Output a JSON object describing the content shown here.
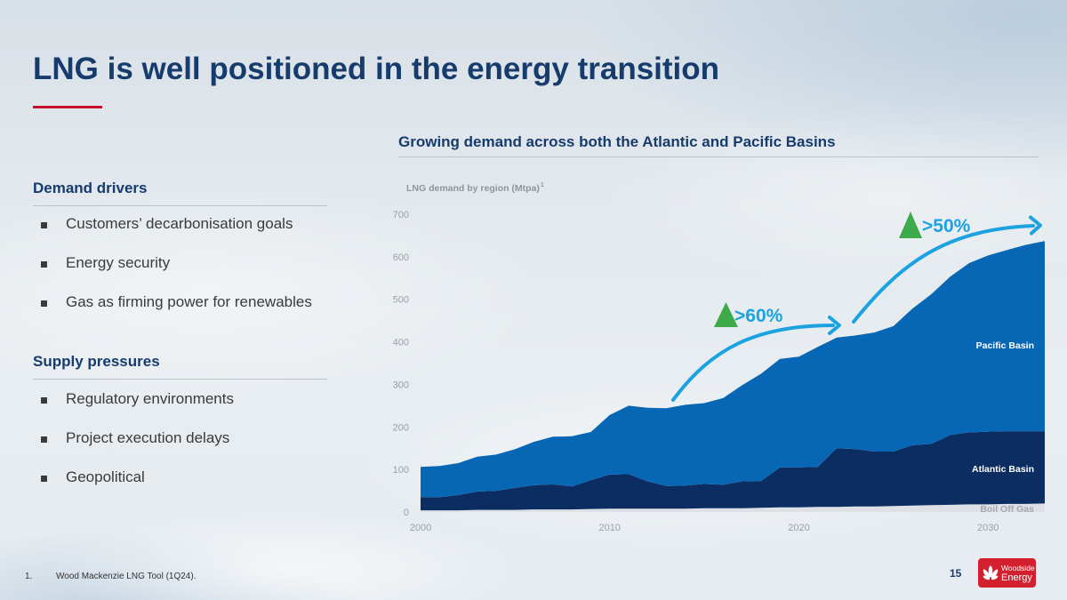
{
  "theme": {
    "navy": "#163b6d",
    "accent_red": "#c8102e",
    "bullet_text": "#3a3a3a",
    "muted": "#8f959c",
    "annotation_blue": "#1ba2e0",
    "annotation_green": "#3dab4a",
    "logo_red": "#d2202f"
  },
  "slide": {
    "title": "LNG is well positioned in the energy transition",
    "page_number": "15"
  },
  "left_panel": {
    "sections": [
      {
        "heading": "Demand drivers",
        "bullets": [
          "Customers’ decarbonisation goals",
          "Energy security",
          "Gas as firming power for renewables"
        ]
      },
      {
        "heading": "Supply pressures",
        "bullets": [
          "Regulatory environments",
          "Project execution delays",
          "Geopolitical"
        ]
      }
    ]
  },
  "right_panel": {
    "heading": "Growing demand across both the Atlantic and Pacific Basins"
  },
  "chart_data": {
    "type": "area",
    "stacked": true,
    "title": "LNG demand by region (Mtpa)",
    "title_footnote": "1",
    "xlabel": "",
    "ylabel": "",
    "x": [
      2000,
      2001,
      2002,
      2003,
      2004,
      2005,
      2006,
      2007,
      2008,
      2009,
      2010,
      2011,
      2012,
      2013,
      2014,
      2015,
      2016,
      2017,
      2018,
      2019,
      2020,
      2021,
      2022,
      2023,
      2024,
      2025,
      2026,
      2027,
      2028,
      2029,
      2030,
      2031,
      2032,
      2033
    ],
    "xlim": [
      2000,
      2033
    ],
    "ylim": [
      0,
      700
    ],
    "xticks": [
      2000,
      2010,
      2020,
      2030
    ],
    "yticks": [
      0,
      100,
      200,
      300,
      400,
      500,
      600,
      700
    ],
    "grid": false,
    "series": [
      {
        "name": "Boil Off Gas",
        "color": "#dde1e6",
        "values": [
          4,
          4,
          4,
          5,
          5,
          5,
          6,
          6,
          6,
          7,
          8,
          8,
          8,
          8,
          8,
          9,
          9,
          9,
          10,
          11,
          11,
          12,
          12,
          13,
          13,
          14,
          15,
          16,
          17,
          18,
          18,
          19,
          19,
          20
        ]
      },
      {
        "name": "Atlantic Basin",
        "color": "#0b2d62",
        "values": [
          31,
          31,
          36,
          43,
          45,
          52,
          57,
          59,
          54,
          68,
          80,
          81,
          64,
          53,
          54,
          57,
          55,
          63,
          63,
          94,
          94,
          94,
          138,
          135,
          129,
          128,
          142,
          144,
          164,
          169,
          171,
          171,
          171,
          170
        ]
      },
      {
        "name": "Pacific Basin",
        "color": "#0867b4",
        "values": [
          71,
          73,
          75,
          82,
          85,
          91,
          102,
          112,
          118,
          113,
          140,
          161,
          173,
          183,
          190,
          190,
          204,
          226,
          252,
          255,
          260,
          282,
          260,
          267,
          280,
          295,
          321,
          352,
          372,
          398,
          414,
          426,
          438,
          447
        ]
      }
    ],
    "annotations": [
      {
        "text": ">60%",
        "marker": "up-triangle-icon"
      },
      {
        "text": ">50%",
        "marker": "up-triangle-icon"
      }
    ]
  },
  "footnote": {
    "marker": "1.",
    "text": "Wood Mackenzie LNG Tool (1Q24)."
  },
  "logo": {
    "line1": "Woodside",
    "line2": "Energy",
    "icon": "woodside-flower-icon"
  }
}
